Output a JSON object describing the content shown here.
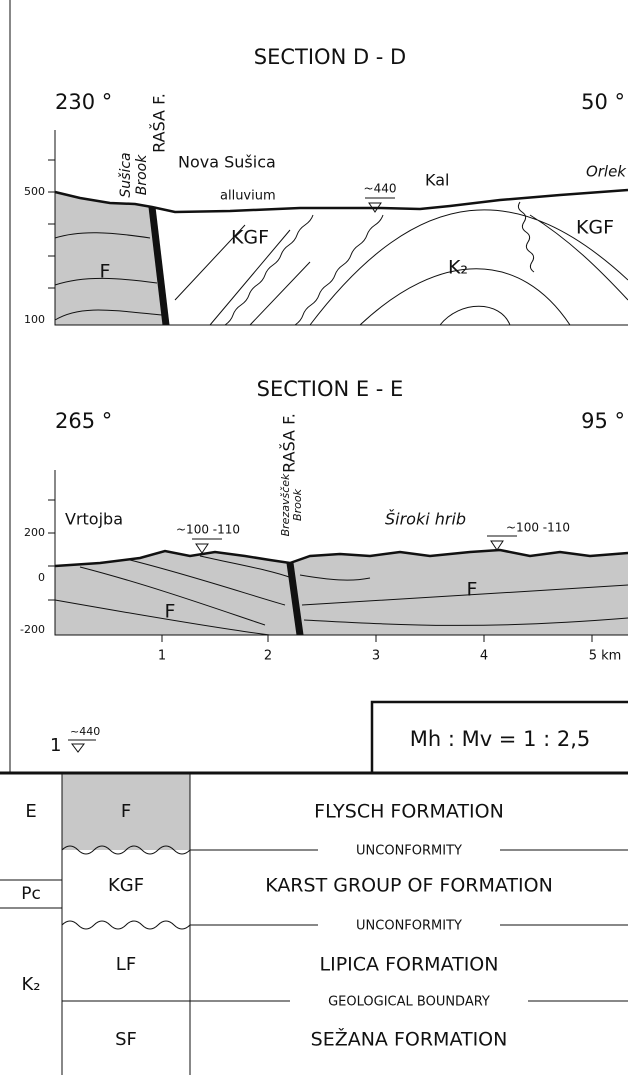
{
  "section_dd": {
    "title": "SECTION D - D",
    "azimuth_left": "230 °",
    "azimuth_right": "50 °",
    "fault": "RAŠA F.",
    "brook": [
      "Sušica",
      "Brook"
    ],
    "places": [
      "Nova Sušica",
      "Orlek",
      "Kal"
    ],
    "alluvium": "alluvium",
    "spring": "~440",
    "units": [
      "KGF",
      "KGF",
      "K₂",
      "F"
    ],
    "elevations": [
      "500",
      "100"
    ]
  },
  "section_ee": {
    "title": "SECTION E - E",
    "azimuth_left": "265 °",
    "azimuth_right": "95 °",
    "fault": "RAŠA F.",
    "brook": [
      "Brezavšček",
      "Brook"
    ],
    "places": [
      "Vrtojba",
      "Široki hrib"
    ],
    "springs": [
      "~100 -110",
      "~100 -110"
    ],
    "units": [
      "F",
      "F"
    ],
    "elevations": [
      "200",
      "0",
      "-200"
    ],
    "distances": [
      "1",
      "2",
      "3",
      "4",
      "5 km"
    ]
  },
  "legend": {
    "number": "1",
    "symbol_label": "~440",
    "scale": "Mh : Mv = 1 : 2,5"
  },
  "table": {
    "ages": [
      "E",
      "Pc",
      "K₂"
    ],
    "formations": [
      {
        "code": "F",
        "name": "FLYSCH FORMATION"
      },
      {
        "code": "KGF",
        "name": "KARST GROUP OF FORMATION"
      },
      {
        "code": "LF",
        "name": "LIPICA FORMATION"
      },
      {
        "code": "SF",
        "name": "SEŽANA FORMATION"
      }
    ],
    "boundaries": [
      "UNCONFORMITY",
      "UNCONFORMITY",
      "GEOLOGICAL BOUNDARY"
    ]
  }
}
